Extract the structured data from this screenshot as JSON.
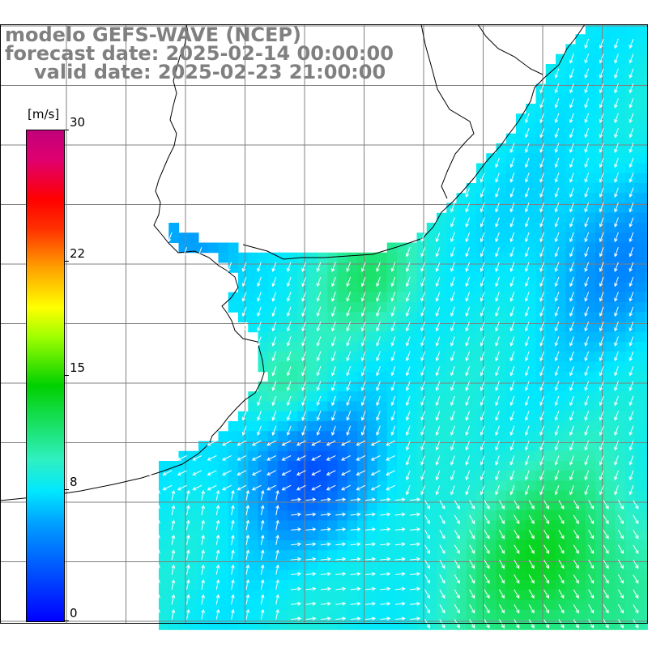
{
  "title": {
    "line1": "modelo GEFS-WAVE (NCEP)",
    "line2": "forecast date: 2025-02-14 00:00:00",
    "line3": "valid date: 2025-02-23 21:00:00"
  },
  "colorbar": {
    "unit": "[m/s]",
    "ticks": [
      "30",
      "22",
      "15",
      "8",
      "0"
    ],
    "tick_values": [
      30,
      22,
      15,
      8,
      0
    ],
    "min": 0,
    "max": 30
  },
  "colors": {
    "land": "#ffffff",
    "grid": "#808080",
    "coast": "#000000",
    "arrow": "#ffffff",
    "title": "#808080"
  }
}
